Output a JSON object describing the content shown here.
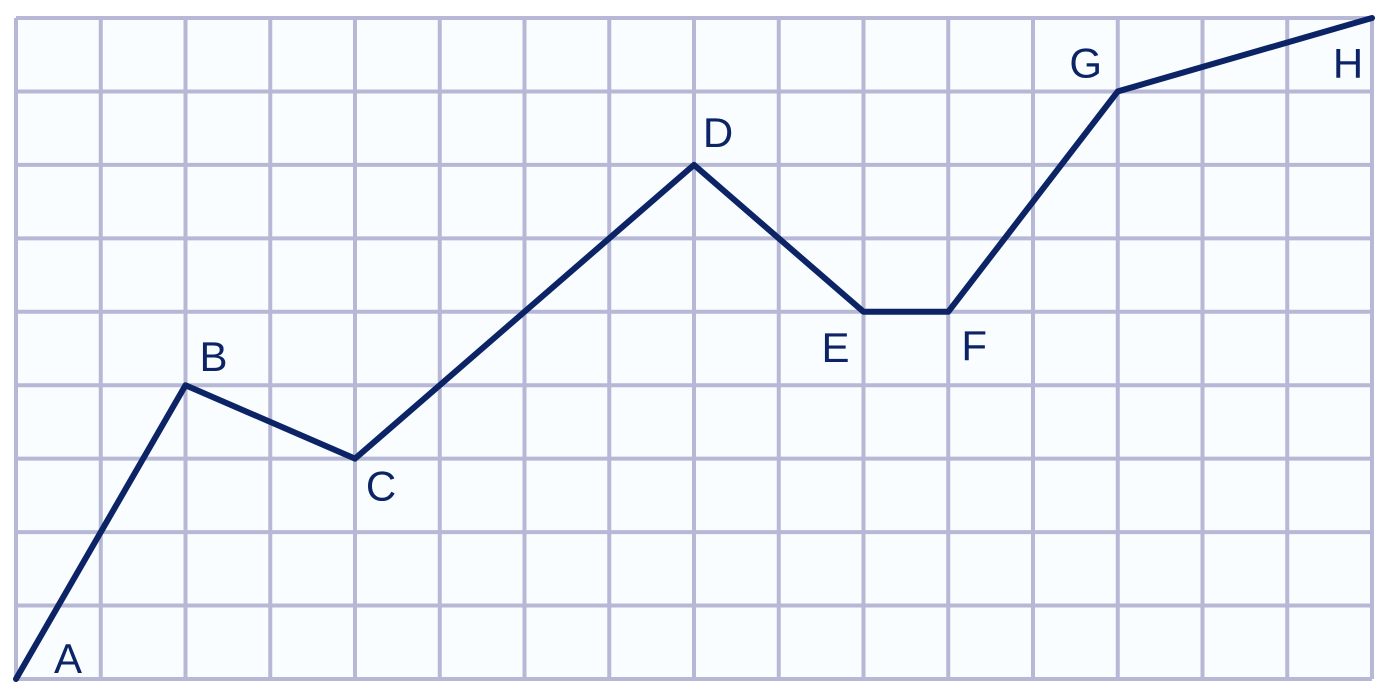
{
  "chart_data": {
    "type": "line",
    "grid": true,
    "xlim": [
      0,
      16
    ],
    "ylim": [
      0,
      9
    ],
    "points": [
      {
        "label": "A",
        "x": 0,
        "y": 0
      },
      {
        "label": "B",
        "x": 2,
        "y": 4
      },
      {
        "label": "C",
        "x": 4,
        "y": 3
      },
      {
        "label": "D",
        "x": 8,
        "y": 7
      },
      {
        "label": "E",
        "x": 10,
        "y": 5
      },
      {
        "label": "F",
        "x": 11,
        "y": 5
      },
      {
        "label": "G",
        "x": 13,
        "y": 8
      },
      {
        "label": "H",
        "x": 16,
        "y": 9
      }
    ],
    "colors": {
      "line": "#0c2466",
      "grid": "#b6b8d6",
      "background": "#f9fdff"
    }
  }
}
